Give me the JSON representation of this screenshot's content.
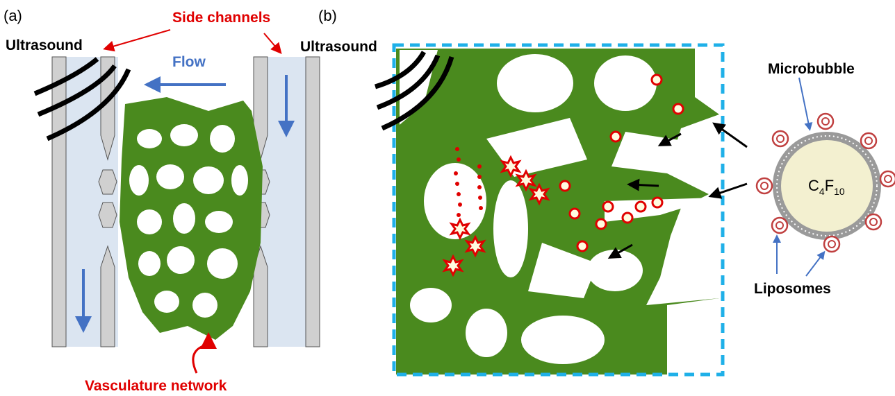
{
  "panel_a": {
    "label": "(a)",
    "ultrasound": "Ultrasound",
    "side_channels": "Side channels",
    "flow": "Flow",
    "vasculature": "Vasculature network"
  },
  "panel_b": {
    "label": "(b)",
    "ultrasound": "Ultrasound",
    "microbubble": "Microbubble",
    "gas": {
      "c": "C",
      "c_sub": "4",
      "f": "F",
      "f_sub": "10"
    },
    "liposomes": "Liposomes"
  }
}
